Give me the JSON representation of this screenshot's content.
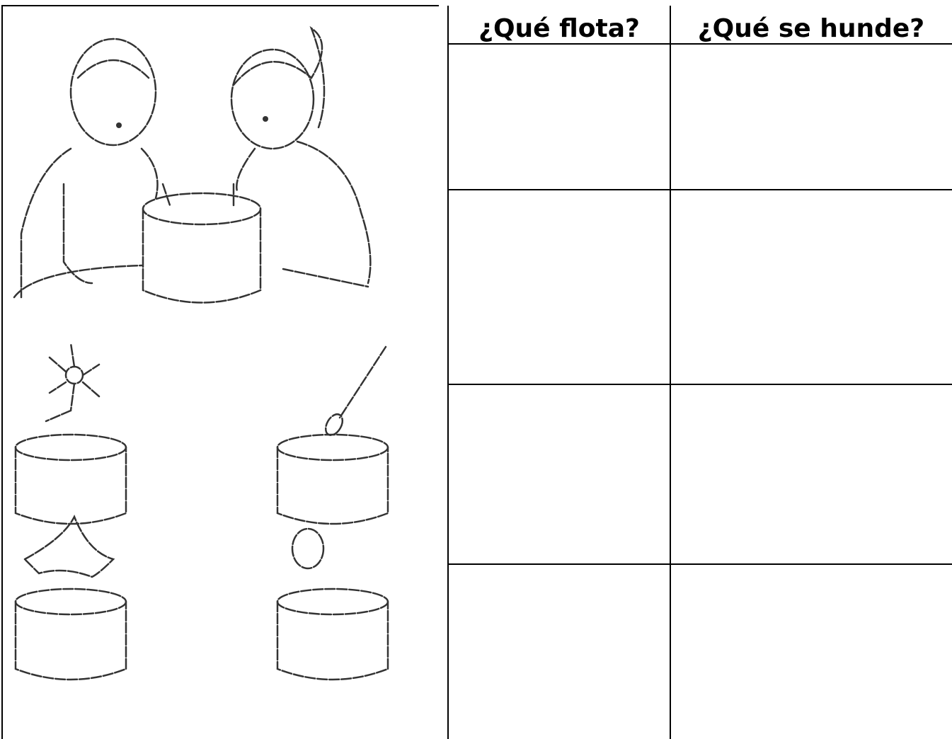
{
  "table": {
    "headers": [
      "¿Qué flota?",
      "¿Qué se hunde?"
    ]
  }
}
